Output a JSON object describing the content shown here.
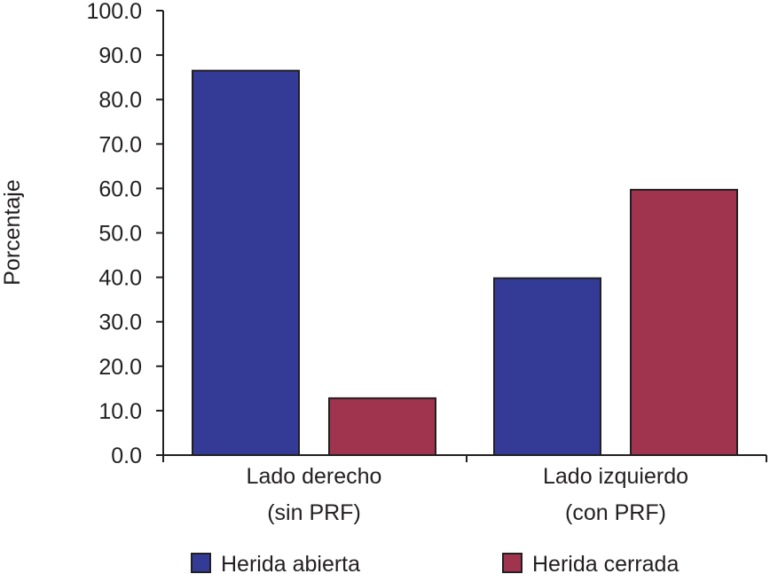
{
  "chart_data": {
    "type": "bar",
    "ylabel": "Porcentaje",
    "xlabel": "",
    "ylim": [
      0,
      100
    ],
    "y_ticks": [
      "0.0",
      "10.0",
      "20.0",
      "30.0",
      "40.0",
      "50.0",
      "60.0",
      "70.0",
      "80.0",
      "90.0",
      "100.0"
    ],
    "categories": [
      {
        "line1": "Lado derecho",
        "line2": "(sin PRF)"
      },
      {
        "line1": "Lado izquierdo",
        "line2": "(con PRF)"
      }
    ],
    "series": [
      {
        "name": "Herida abierta",
        "color": "#343b97",
        "values": [
          86.5,
          39.8
        ]
      },
      {
        "name": "Herida cerrada",
        "color": "#a0344f",
        "values": [
          12.8,
          59.7
        ]
      }
    ],
    "legend_position": "bottom",
    "grid": false
  }
}
